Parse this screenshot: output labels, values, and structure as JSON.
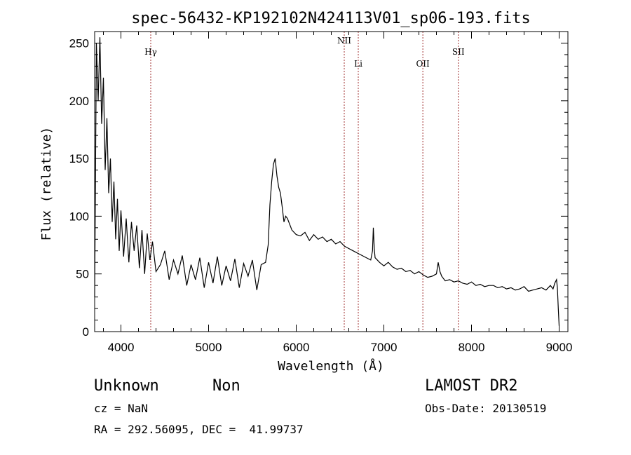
{
  "chart_data": {
    "type": "line",
    "title": "spec-56432-KP192102N424113V01_sp06-193.fits",
    "xlabel": "Wavelength (Å)",
    "ylabel": "Flux (relative)",
    "xlim": [
      3700,
      9100
    ],
    "ylim": [
      0,
      260
    ],
    "xticks": [
      4000,
      5000,
      6000,
      7000,
      8000,
      9000
    ],
    "yticks": [
      0,
      50,
      100,
      150,
      200,
      250
    ],
    "grid": false,
    "series": [
      {
        "x": [
          3700,
          3720,
          3740,
          3760,
          3780,
          3800,
          3820,
          3840,
          3860,
          3880,
          3900,
          3920,
          3940,
          3960,
          3980,
          4000,
          4030,
          4060,
          4090,
          4120,
          4150,
          4180,
          4210,
          4240,
          4270,
          4300,
          4330,
          4360,
          4400,
          4450,
          4500,
          4550,
          4600,
          4650,
          4700,
          4750,
          4800,
          4850,
          4900,
          4950,
          5000,
          5050,
          5100,
          5150,
          5200,
          5250,
          5300,
          5350,
          5400,
          5450,
          5500,
          5550,
          5600,
          5650,
          5680,
          5700,
          5720,
          5740,
          5760,
          5780,
          5800,
          5820,
          5840,
          5860,
          5880,
          5900,
          5950,
          6000,
          6050,
          6100,
          6150,
          6200,
          6250,
          6300,
          6350,
          6400,
          6450,
          6500,
          6550,
          6600,
          6650,
          6700,
          6750,
          6800,
          6850,
          6870,
          6880,
          6890,
          6900,
          6950,
          7000,
          7050,
          7100,
          7150,
          7200,
          7250,
          7300,
          7350,
          7400,
          7450,
          7500,
          7550,
          7600,
          7620,
          7640,
          7660,
          7700,
          7750,
          7800,
          7850,
          7900,
          7950,
          8000,
          8050,
          8100,
          8150,
          8200,
          8250,
          8300,
          8350,
          8400,
          8450,
          8500,
          8550,
          8600,
          8650,
          8700,
          8750,
          8800,
          8850,
          8900,
          8930,
          8950,
          8970,
          8980,
          8990,
          9000
        ],
        "y": [
          30,
          250,
          200,
          255,
          180,
          220,
          140,
          185,
          120,
          150,
          95,
          130,
          80,
          115,
          70,
          105,
          65,
          98,
          60,
          95,
          70,
          92,
          55,
          88,
          50,
          85,
          62,
          78,
          52,
          58,
          70,
          45,
          62,
          50,
          66,
          40,
          58,
          45,
          64,
          38,
          60,
          42,
          65,
          40,
          57,
          44,
          63,
          38,
          59,
          48,
          62,
          36,
          58,
          60,
          75,
          110,
          130,
          145,
          150,
          135,
          125,
          120,
          108,
          95,
          100,
          98,
          88,
          84,
          83,
          86,
          79,
          84,
          80,
          82,
          78,
          80,
          76,
          78,
          74,
          72,
          70,
          68,
          66,
          64,
          62,
          70,
          90,
          72,
          64,
          60,
          57,
          60,
          56,
          54,
          55,
          52,
          53,
          50,
          52,
          49,
          47,
          48,
          50,
          60,
          52,
          48,
          44,
          45,
          43,
          44,
          42,
          41,
          43,
          40,
          41,
          39,
          40,
          40,
          38,
          39,
          37,
          38,
          36,
          37,
          39,
          35,
          36,
          37,
          38,
          36,
          40,
          37,
          42,
          45,
          38,
          20,
          5
        ]
      }
    ],
    "lines": [
      {
        "label": "Hγ",
        "x": 4340
      },
      {
        "label": "NII",
        "x": 6548
      },
      {
        "label": "Li",
        "x": 6708
      },
      {
        "label": "OII",
        "x": 7445
      },
      {
        "label": "SII",
        "x": 7850
      }
    ]
  },
  "info": {
    "obj_class": "Unknown",
    "subclass": "Non",
    "survey": "LAMOST DR2",
    "cz": "cz = NaN",
    "obs_date": "Obs-Date: 20130519",
    "coords": "RA = 292.56095, DEC =  41.99737"
  }
}
